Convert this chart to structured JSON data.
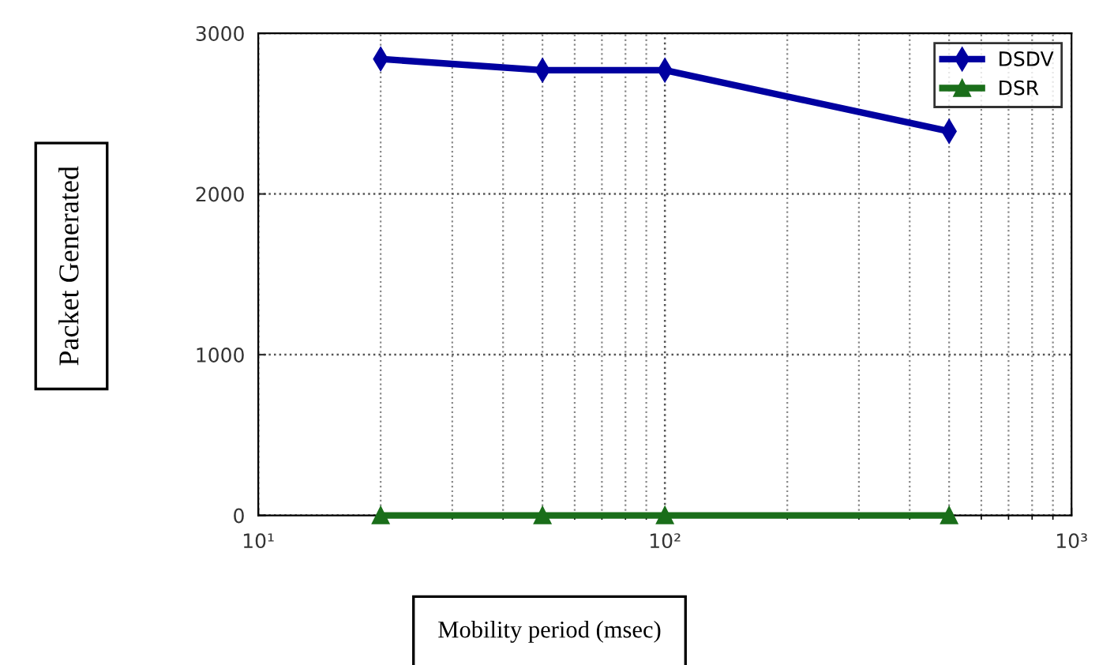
{
  "chart_data": {
    "type": "line",
    "xlabel": "Mobility period (msec)",
    "ylabel": "Packet Generated",
    "x": [
      20,
      50,
      100,
      500
    ],
    "series": [
      {
        "name": "DSDV",
        "color": "#0000a0",
        "values": [
          2840,
          2770,
          2770,
          2390
        ],
        "marker": "diamond"
      },
      {
        "name": "DSR",
        "color": "#1a6e1a",
        "values": [
          0,
          0,
          0,
          0
        ],
        "marker": "triangle"
      }
    ],
    "log": "x",
    "xlim": [
      10,
      1000
    ],
    "xticks": [
      {
        "value": 10,
        "label": "10¹"
      },
      {
        "value": 100,
        "label": "10²"
      },
      {
        "value": 1000,
        "label": "10³"
      }
    ],
    "ylim": [
      0,
      3000
    ],
    "yticks": [
      0,
      1000,
      2000,
      3000
    ],
    "grid": true,
    "legend": "top right",
    "line_style": "solid"
  }
}
